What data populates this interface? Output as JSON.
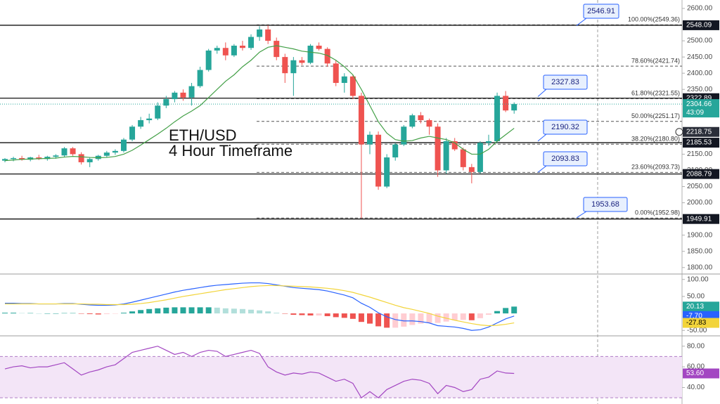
{
  "chart_data": [
    {
      "type": "candlestick",
      "title": "ETH/USD",
      "subtitle": "4 Hour Timeframe",
      "up_color": "#26a69a",
      "down_color": "#ef5350",
      "open": [
        2130,
        2135,
        2138,
        2133,
        2140,
        2135,
        2142,
        2146,
        2168,
        2150,
        2125,
        2135,
        2145,
        2155,
        2160,
        2195,
        2235,
        2255,
        2260,
        2300,
        2320,
        2340,
        2325,
        2360,
        2410,
        2470,
        2478,
        2455,
        2485,
        2478,
        2512,
        2535,
        2500,
        2450,
        2400,
        2440,
        2432,
        2485,
        2475,
        2430,
        2370,
        2390,
        2330,
        2180,
        2210,
        2050,
        2140,
        2180,
        2235,
        2270,
        2255,
        2235,
        2100,
        2190,
        2165,
        2110,
        2095,
        2185,
        2190,
        2330,
        2285
      ],
      "high": [
        2138,
        2142,
        2145,
        2142,
        2148,
        2145,
        2150,
        2172,
        2172,
        2156,
        2140,
        2148,
        2160,
        2165,
        2200,
        2240,
        2265,
        2275,
        2310,
        2330,
        2345,
        2350,
        2370,
        2420,
        2475,
        2485,
        2495,
        2490,
        2500,
        2520,
        2545,
        2548,
        2510,
        2460,
        2450,
        2450,
        2490,
        2495,
        2480,
        2440,
        2400,
        2395,
        2340,
        2220,
        2220,
        2150,
        2185,
        2240,
        2275,
        2280,
        2260,
        2245,
        2200,
        2200,
        2170,
        2120,
        2190,
        2210,
        2340,
        2345,
        2310
      ],
      "low": [
        2125,
        2128,
        2130,
        2128,
        2132,
        2130,
        2136,
        2140,
        2145,
        2118,
        2110,
        2130,
        2140,
        2148,
        2155,
        2190,
        2228,
        2245,
        2255,
        2292,
        2310,
        2315,
        2300,
        2355,
        2405,
        2460,
        2440,
        2450,
        2470,
        2472,
        2500,
        2490,
        2440,
        2370,
        2330,
        2425,
        2428,
        2470,
        2420,
        2360,
        2340,
        2320,
        1952,
        2150,
        2040,
        2045,
        2130,
        2175,
        2230,
        2245,
        2210,
        2080,
        2090,
        2160,
        2100,
        2060,
        2090,
        2175,
        2185,
        2280,
        2275
      ],
      "close": [
        2135,
        2138,
        2133,
        2140,
        2135,
        2142,
        2146,
        2168,
        2150,
        2125,
        2135,
        2145,
        2155,
        2160,
        2195,
        2235,
        2255,
        2260,
        2300,
        2320,
        2340,
        2325,
        2360,
        2410,
        2470,
        2478,
        2455,
        2485,
        2478,
        2512,
        2535,
        2500,
        2450,
        2400,
        2440,
        2432,
        2485,
        2475,
        2430,
        2370,
        2390,
        2330,
        2180,
        2210,
        2050,
        2140,
        2180,
        2235,
        2270,
        2255,
        2235,
        2100,
        2190,
        2165,
        2110,
        2095,
        2185,
        2190,
        2330,
        2285,
        2304.66
      ],
      "ma": {
        "color": "#43a047",
        "values": [
          2130,
          2132,
          2134,
          2135,
          2136,
          2137,
          2138,
          2141,
          2143,
          2142,
          2140,
          2139,
          2140,
          2143,
          2150,
          2162,
          2178,
          2195,
          2212,
          2230,
          2250,
          2268,
          2283,
          2300,
          2325,
          2350,
          2375,
          2395,
          2420,
          2440,
          2465,
          2480,
          2485,
          2480,
          2475,
          2468,
          2465,
          2462,
          2455,
          2440,
          2420,
          2395,
          2350,
          2300,
          2250,
          2215,
          2195,
          2190,
          2192,
          2200,
          2205,
          2200,
          2195,
          2185,
          2165,
          2150,
          2150,
          2165,
          2190,
          2210,
          2230
        ]
      },
      "ylim": [
        1780,
        2626
      ],
      "yticks": [
        {
          "value": 2600,
          "label": "2600.00"
        },
        {
          "value": 2500,
          "label": "2500.00"
        },
        {
          "value": 2450,
          "label": "2450.00"
        },
        {
          "value": 2400,
          "label": "2400.00"
        },
        {
          "value": 2350,
          "label": "2350.00"
        },
        {
          "value": 2150,
          "label": "2150.00"
        },
        {
          "value": 2100,
          "label": "2100.00"
        },
        {
          "value": 2050,
          "label": "2050.00"
        },
        {
          "value": 2000,
          "label": "2000.00"
        },
        {
          "value": 1900,
          "label": "1900.00"
        },
        {
          "value": 1850,
          "label": "1850.00"
        },
        {
          "value": 1800,
          "label": "1800.00"
        }
      ],
      "levels": [
        2548.09,
        2322.89,
        2185.53,
        2088.79,
        1949.91
      ],
      "callouts": [
        2546.91,
        2327.83,
        2190.32,
        2093.83,
        1953.68
      ],
      "fib_levels": [
        {
          "value": 2549.36,
          "label": "100.00%(2549.36)"
        },
        {
          "value": 2421.74,
          "label": "78.60%(2421.74)"
        },
        {
          "value": 2321.55,
          "label": "61.80%(2321.55)"
        },
        {
          "value": 2251.17,
          "label": "50.00%(2251.17)"
        },
        {
          "value": 2180.8,
          "label": "38.20%(2180.80)"
        },
        {
          "value": 2093.73,
          "label": "23.60%(2093.73)"
        },
        {
          "value": 1952.98,
          "label": "0.00%(1952.98)"
        }
      ],
      "price_tag": 2304.66,
      "countdown": "43:09",
      "ma_tag": 2218.75
    },
    {
      "type": "macd",
      "histogram": {
        "colors": [
          "#26a69a",
          "#b2dfdb",
          "#ffcdd2",
          "#ef5350"
        ],
        "values": [
          2,
          2,
          1,
          1,
          0,
          0,
          0,
          1,
          1,
          -1,
          -2,
          -3,
          -2,
          -1,
          2,
          6,
          10,
          13,
          15,
          17,
          18,
          18,
          18,
          18,
          18,
          17,
          15,
          14,
          13,
          11,
          9,
          6,
          2,
          -1,
          -4,
          -5,
          -6,
          -6,
          -8,
          -11,
          -13,
          -16,
          -25,
          -30,
          -38,
          -42,
          -42,
          -39,
          -34,
          -30,
          -28,
          -28,
          -24,
          -20,
          -19,
          -20,
          -14,
          -4,
          7,
          16,
          20.13
        ],
        "tag": {
          "value": 20.13,
          "label": "20.13"
        }
      },
      "series": [
        {
          "color": "#2962ff",
          "values": [
            30,
            30,
            29,
            29,
            28,
            28,
            28,
            29,
            29,
            27,
            25,
            24,
            24,
            25,
            28,
            33,
            39,
            45,
            51,
            57,
            63,
            68,
            72,
            76,
            80,
            83,
            85,
            87,
            89,
            90,
            90,
            88,
            84,
            80,
            76,
            74,
            72,
            70,
            66,
            60,
            54,
            46,
            30,
            18,
            2,
            -10,
            -18,
            -22,
            -22,
            -24,
            -28,
            -36,
            -38,
            -40,
            -44,
            -50,
            -48,
            -40,
            -28,
            -16,
            -7.7
          ],
          "tag": {
            "value": -7.7,
            "label": "-7.70"
          }
        },
        {
          "color": "#f2d43a",
          "values": [
            28,
            28,
            28,
            28,
            28,
            28,
            28,
            28,
            28,
            28,
            27,
            27,
            26,
            26,
            26,
            27,
            29,
            32,
            36,
            40,
            45,
            50,
            54,
            58,
            62,
            66,
            70,
            73,
            76,
            79,
            81,
            82,
            82,
            81,
            80,
            79,
            78,
            76,
            74,
            71,
            67,
            62,
            55,
            48,
            40,
            32,
            24,
            17,
            12,
            6,
            0,
            -8,
            -14,
            -20,
            -25,
            -30,
            -34,
            -36,
            -35,
            -32,
            -27.83
          ],
          "tag": {
            "value": -27.83,
            "label": "-27.83"
          }
        }
      ],
      "ylim": [
        -66,
        116
      ],
      "yticks": [
        {
          "value": 100,
          "label": "100.00"
        },
        {
          "value": 50,
          "label": "50.00"
        },
        {
          "value": -50,
          "label": "-50.00"
        }
      ]
    },
    {
      "type": "rsi",
      "series": [
        {
          "color": "#a347c2",
          "values": [
            58,
            60,
            61,
            59,
            60,
            60,
            62,
            64,
            58,
            52,
            55,
            57,
            60,
            62,
            68,
            74,
            76,
            78,
            80,
            76,
            72,
            74,
            70,
            74,
            76,
            75,
            70,
            72,
            74,
            76,
            73,
            60,
            55,
            52,
            54,
            53,
            55,
            54,
            50,
            46,
            48,
            44,
            30,
            36,
            30,
            38,
            42,
            46,
            48,
            47,
            44,
            34,
            42,
            40,
            36,
            38,
            48,
            50,
            56,
            54,
            53.6
          ],
          "tag": {
            "value": 53.6,
            "label": "53.60"
          }
        }
      ],
      "band": [
        30,
        70
      ],
      "band_color": "#f3e5f7",
      "ylim": [
        24,
        90
      ],
      "yticks": [
        {
          "value": 80,
          "label": "80.00"
        },
        {
          "value": 60,
          "label": "60.00"
        },
        {
          "value": 40,
          "label": "40.00"
        }
      ]
    }
  ]
}
